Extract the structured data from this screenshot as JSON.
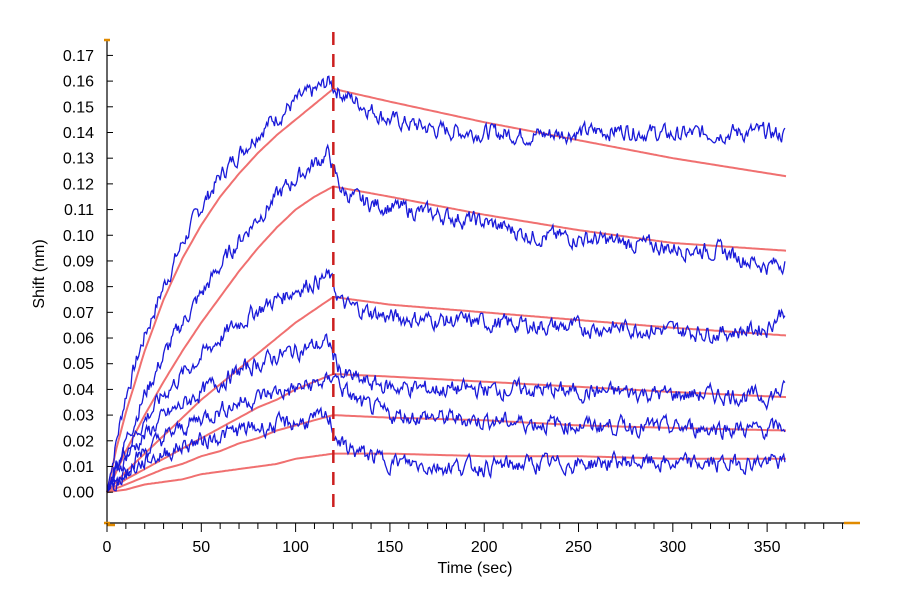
{
  "chart_data": {
    "type": "line",
    "title": "",
    "xlabel": "Time (sec)",
    "ylabel": "Shift (nm)",
    "xlim": [
      0,
      395
    ],
    "ylim": [
      -0.012,
      0.176
    ],
    "x_ticks": [
      "0",
      "50",
      "100",
      "150",
      "200",
      "250",
      "300",
      "350"
    ],
    "y_ticks": [
      "0.00",
      "0.01",
      "0.02",
      "0.03",
      "0.04",
      "0.05",
      "0.06",
      "0.07",
      "0.08",
      "0.09",
      "0.10",
      "0.11",
      "0.12",
      "0.13",
      "0.14",
      "0.15",
      "0.16",
      "0.17"
    ],
    "vertical_marker": {
      "x": 120,
      "style": "dashed",
      "color": "#cc1f1f"
    },
    "grid": false,
    "legend": "none",
    "colors": {
      "measured": "#1a1ad9",
      "fit": "#f07070",
      "axis": "#000000",
      "axis_end_marker": "#e08a00"
    },
    "series": [
      {
        "role": "measured",
        "x": [
          0,
          5,
          10,
          20,
          30,
          40,
          50,
          60,
          70,
          80,
          90,
          100,
          110,
          118,
          120,
          125,
          135,
          150,
          175,
          200,
          225,
          250,
          275,
          300,
          325,
          350,
          360
        ],
        "y": [
          0.0,
          0.02,
          0.038,
          0.061,
          0.08,
          0.097,
          0.111,
          0.123,
          0.132,
          0.14,
          0.146,
          0.152,
          0.156,
          0.16,
          0.158,
          0.155,
          0.151,
          0.145,
          0.141,
          0.14,
          0.139,
          0.14,
          0.141,
          0.139,
          0.14,
          0.14,
          0.139
        ]
      },
      {
        "role": "fit",
        "x": [
          0,
          5,
          10,
          20,
          30,
          40,
          50,
          60,
          70,
          80,
          90,
          100,
          110,
          120,
          150,
          200,
          250,
          300,
          360
        ],
        "y": [
          0.0,
          0.017,
          0.031,
          0.055,
          0.075,
          0.091,
          0.104,
          0.115,
          0.124,
          0.132,
          0.139,
          0.145,
          0.151,
          0.157,
          0.152,
          0.144,
          0.137,
          0.13,
          0.123
        ]
      },
      {
        "role": "measured",
        "x": [
          0,
          5,
          10,
          20,
          30,
          40,
          50,
          60,
          70,
          80,
          90,
          100,
          110,
          118,
          120,
          125,
          135,
          150,
          175,
          200,
          225,
          250,
          275,
          300,
          325,
          350,
          360
        ],
        "y": [
          0.0,
          0.01,
          0.02,
          0.038,
          0.053,
          0.066,
          0.077,
          0.088,
          0.098,
          0.107,
          0.115,
          0.122,
          0.128,
          0.132,
          0.125,
          0.117,
          0.113,
          0.111,
          0.108,
          0.105,
          0.1,
          0.099,
          0.097,
          0.095,
          0.094,
          0.088,
          0.09
        ]
      },
      {
        "role": "fit",
        "x": [
          0,
          5,
          10,
          20,
          30,
          40,
          50,
          60,
          70,
          80,
          90,
          100,
          110,
          120,
          150,
          200,
          250,
          300,
          360
        ],
        "y": [
          0.0,
          0.008,
          0.016,
          0.03,
          0.043,
          0.055,
          0.066,
          0.076,
          0.086,
          0.095,
          0.103,
          0.11,
          0.115,
          0.119,
          0.115,
          0.108,
          0.102,
          0.097,
          0.094
        ]
      },
      {
        "role": "measured",
        "x": [
          0,
          5,
          10,
          20,
          30,
          40,
          50,
          60,
          70,
          80,
          90,
          100,
          110,
          118,
          120,
          125,
          135,
          150,
          175,
          200,
          225,
          250,
          275,
          300,
          325,
          350,
          360
        ],
        "y": [
          0.0,
          0.01,
          0.017,
          0.028,
          0.038,
          0.046,
          0.053,
          0.06,
          0.066,
          0.071,
          0.075,
          0.079,
          0.082,
          0.084,
          0.08,
          0.073,
          0.071,
          0.068,
          0.067,
          0.066,
          0.065,
          0.064,
          0.064,
          0.063,
          0.062,
          0.064,
          0.072
        ]
      },
      {
        "role": "fit",
        "x": [
          0,
          10,
          20,
          30,
          40,
          50,
          60,
          70,
          80,
          90,
          100,
          110,
          120,
          150,
          200,
          250,
          300,
          360
        ],
        "y": [
          0.0,
          0.008,
          0.015,
          0.022,
          0.029,
          0.036,
          0.042,
          0.048,
          0.054,
          0.06,
          0.066,
          0.071,
          0.076,
          0.073,
          0.07,
          0.067,
          0.064,
          0.061
        ]
      },
      {
        "role": "measured",
        "x": [
          0,
          5,
          10,
          20,
          30,
          40,
          50,
          60,
          70,
          80,
          90,
          100,
          110,
          118,
          120,
          125,
          135,
          150,
          175,
          200,
          225,
          250,
          275,
          300,
          325,
          350,
          360
        ],
        "y": [
          0.0,
          0.008,
          0.014,
          0.022,
          0.029,
          0.034,
          0.039,
          0.043,
          0.047,
          0.05,
          0.053,
          0.055,
          0.057,
          0.058,
          0.053,
          0.046,
          0.043,
          0.041,
          0.04,
          0.04,
          0.04,
          0.039,
          0.039,
          0.038,
          0.038,
          0.037,
          0.04
        ]
      },
      {
        "role": "fit",
        "x": [
          0,
          10,
          20,
          30,
          40,
          50,
          60,
          70,
          80,
          90,
          100,
          110,
          120,
          150,
          200,
          250,
          300,
          360
        ],
        "y": [
          0.0,
          0.005,
          0.009,
          0.013,
          0.017,
          0.021,
          0.025,
          0.029,
          0.033,
          0.036,
          0.04,
          0.043,
          0.046,
          0.045,
          0.043,
          0.041,
          0.039,
          0.037
        ]
      },
      {
        "role": "measured",
        "x": [
          0,
          5,
          10,
          20,
          30,
          40,
          50,
          60,
          70,
          80,
          90,
          100,
          110,
          118,
          120,
          125,
          135,
          150,
          175,
          200,
          225,
          250,
          275,
          300,
          325,
          350,
          360
        ],
        "y": [
          0.0,
          0.005,
          0.01,
          0.016,
          0.021,
          0.025,
          0.029,
          0.032,
          0.035,
          0.037,
          0.039,
          0.04,
          0.042,
          0.043,
          0.047,
          0.04,
          0.034,
          0.03,
          0.029,
          0.028,
          0.027,
          0.026,
          0.026,
          0.025,
          0.025,
          0.024,
          0.026
        ]
      },
      {
        "role": "fit",
        "x": [
          0,
          10,
          20,
          30,
          40,
          50,
          60,
          70,
          80,
          90,
          100,
          110,
          120,
          150,
          200,
          250,
          300,
          360
        ],
        "y": [
          0.0,
          0.003,
          0.006,
          0.009,
          0.011,
          0.014,
          0.016,
          0.019,
          0.021,
          0.024,
          0.026,
          0.028,
          0.03,
          0.029,
          0.028,
          0.026,
          0.025,
          0.024
        ]
      },
      {
        "role": "measured",
        "x": [
          0,
          5,
          10,
          20,
          30,
          40,
          50,
          60,
          70,
          80,
          90,
          100,
          110,
          118,
          120,
          125,
          135,
          150,
          175,
          200,
          225,
          250,
          275,
          300,
          325,
          350,
          360
        ],
        "y": [
          0.0,
          0.004,
          0.007,
          0.012,
          0.015,
          0.018,
          0.02,
          0.022,
          0.024,
          0.025,
          0.026,
          0.027,
          0.028,
          0.029,
          0.024,
          0.018,
          0.015,
          0.012,
          0.01,
          0.01,
          0.011,
          0.011,
          0.012,
          0.011,
          0.011,
          0.012,
          0.011
        ]
      },
      {
        "role": "fit",
        "x": [
          0,
          10,
          20,
          30,
          40,
          50,
          60,
          70,
          80,
          90,
          100,
          110,
          120,
          150,
          200,
          250,
          300,
          360
        ],
        "y": [
          0.0,
          0.001,
          0.003,
          0.004,
          0.005,
          0.007,
          0.008,
          0.009,
          0.01,
          0.011,
          0.013,
          0.014,
          0.015,
          0.015,
          0.014,
          0.014,
          0.013,
          0.013
        ]
      }
    ]
  }
}
